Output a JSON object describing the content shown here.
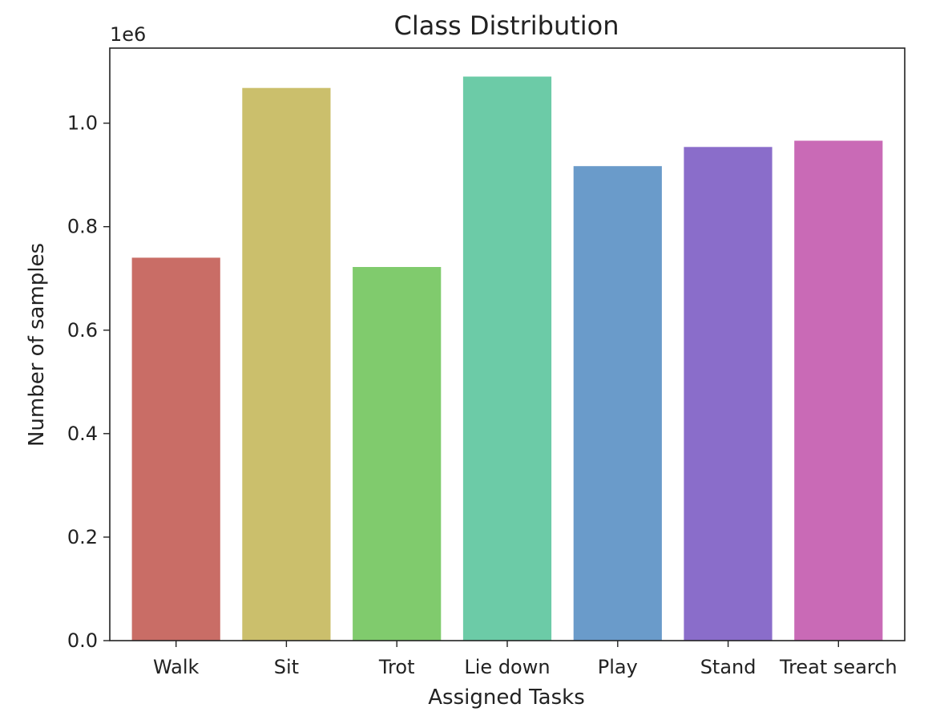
{
  "chart_data": {
    "type": "bar",
    "title": "Class Distribution",
    "xlabel": "Assigned Tasks",
    "ylabel": "Number of samples",
    "y_offset_label": "1e6",
    "categories": [
      "Walk",
      "Sit",
      "Trot",
      "Lie down",
      "Play",
      "Stand",
      "Treat search"
    ],
    "values": [
      740000,
      1068000,
      722000,
      1090000,
      917000,
      954000,
      966000
    ],
    "colors": [
      "#c96d66",
      "#cbbf6c",
      "#80cb6d",
      "#6ccba7",
      "#6a9bca",
      "#8a6dca",
      "#c96ab6"
    ],
    "yticks": [
      0,
      200000,
      400000,
      600000,
      800000,
      1000000
    ],
    "ytick_labels": [
      "0.0",
      "0.2",
      "0.4",
      "0.6",
      "0.8",
      "1.0"
    ],
    "ylim": [
      0,
      1145000
    ],
    "grid": false,
    "legend": "none"
  }
}
